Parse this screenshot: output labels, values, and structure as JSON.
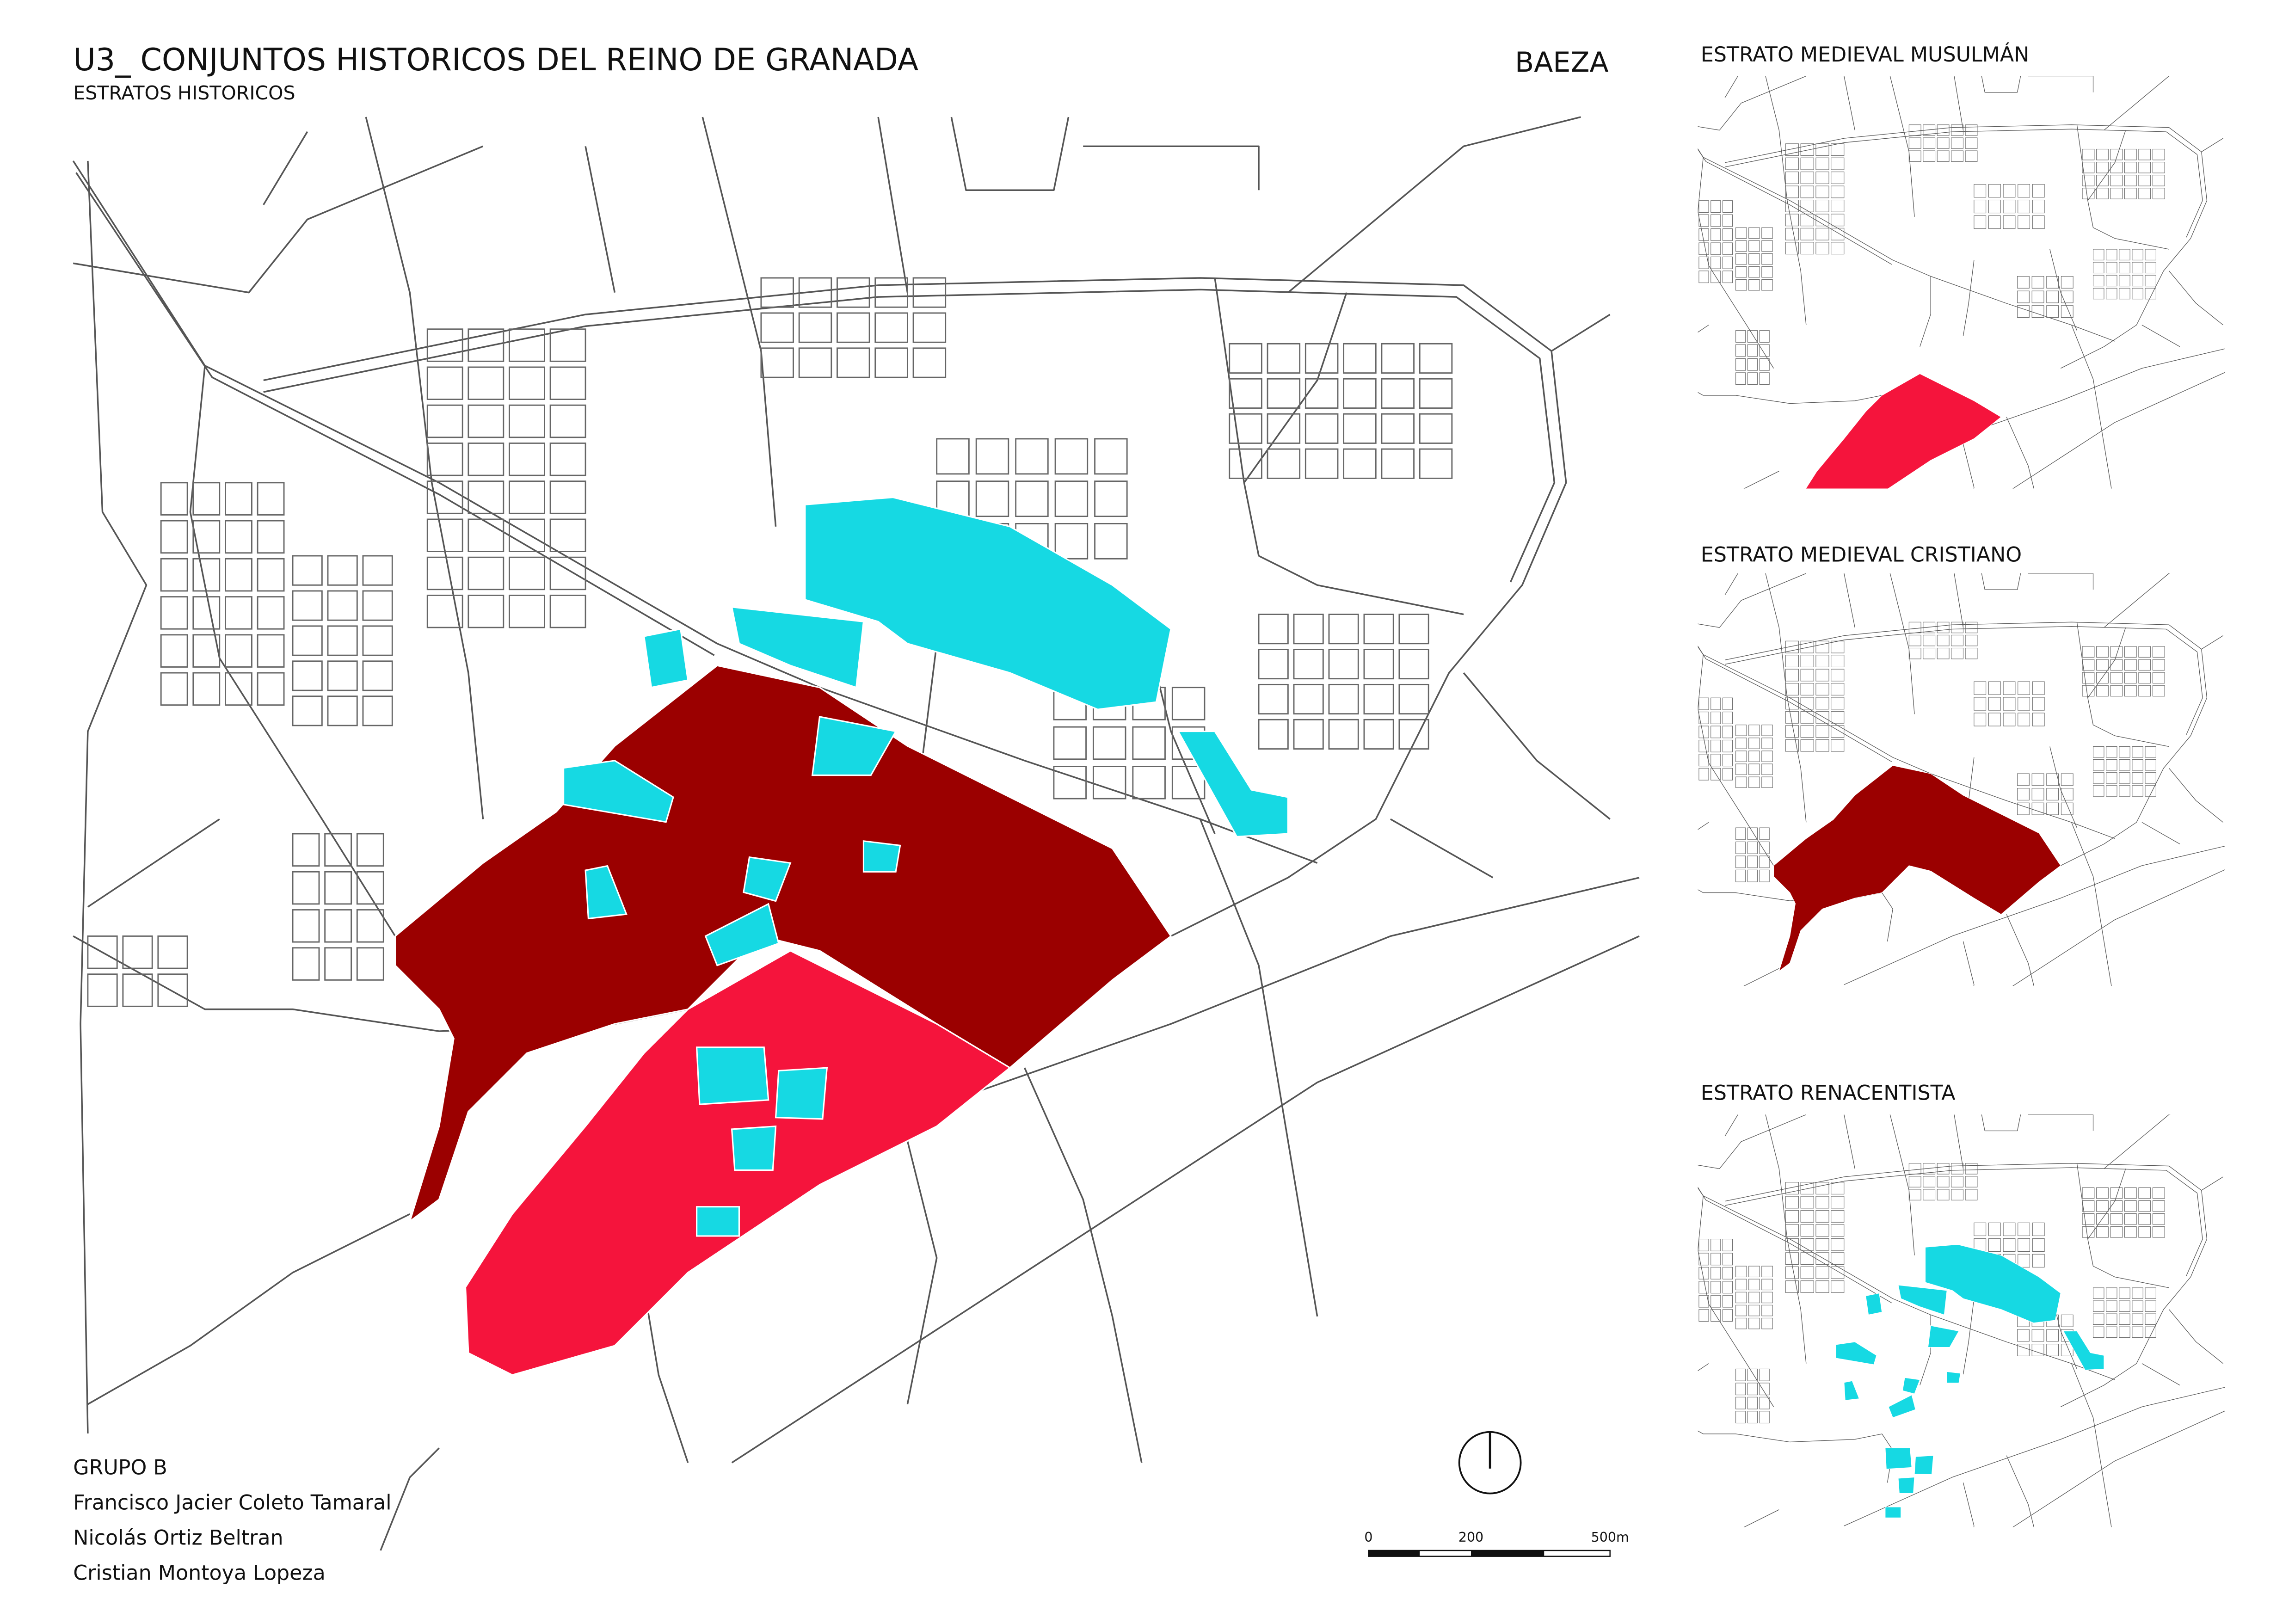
{
  "header": {
    "title": "U3_ CONJUNTOS HISTORICOS DEL REINO DE GRANADA",
    "subtitle": "ESTRATOS HISTORICOS",
    "place": "BAEZA"
  },
  "panels": [
    {
      "title": "ESTRATO MEDIEVAL MUSULMÁN"
    },
    {
      "title": "ESTRATO MEDIEVAL CRISTIANO"
    },
    {
      "title": "ESTRATO RENACENTISTA"
    }
  ],
  "credits": {
    "group": "GRUPO B",
    "members": [
      "Francisco Jacier Coleto Tamaral",
      "Nicolás Ortiz Beltran",
      "Cristian Montoya Lopeza"
    ]
  },
  "scale_bar": {
    "labels": [
      "0",
      "200",
      "500m"
    ]
  }
}
